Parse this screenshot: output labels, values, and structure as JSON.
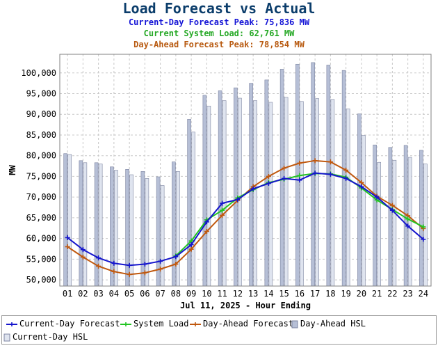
{
  "header": {
    "title": "Load Forecast vs Actual",
    "current_day_peak": "Current-Day Forecast Peak:  75,836 MW",
    "current_system_load": "Current System Load:  62,761 MW",
    "day_ahead_peak": "Day-Ahead Forecast Peak:  78,854 MW"
  },
  "colors": {
    "current_day_forecast": "#1515cc",
    "system_load": "#22c422",
    "day_ahead_forecast": "#c0580e",
    "bar_day_ahead_hsl": "#b6bfd6",
    "bar_current_day_hsl": "#dfe4ef",
    "bar_edge": "#7c84a0"
  },
  "chart_data": {
    "type": "bar+line",
    "xlabel": "Jul 11, 2025 - Hour Ending",
    "ylabel": "MW",
    "categories": [
      "01",
      "02",
      "03",
      "04",
      "05",
      "06",
      "07",
      "08",
      "09",
      "10",
      "11",
      "12",
      "13",
      "14",
      "15",
      "16",
      "17",
      "18",
      "19",
      "20",
      "21",
      "22",
      "23",
      "24"
    ],
    "ylim": [
      48500,
      104500
    ],
    "yticks": [
      50000,
      55000,
      60000,
      65000,
      70000,
      75000,
      80000,
      85000,
      90000,
      95000,
      100000
    ],
    "ytick_labels": [
      "50,000",
      "55,000",
      "60,000",
      "65,000",
      "70,000",
      "75,000",
      "80,000",
      "85,000",
      "90,000",
      "95,000",
      "100,000"
    ],
    "grid": true,
    "legend_position": "bottom",
    "series": [
      {
        "name": "Current-Day Forecast",
        "kind": "line",
        "values": [
          60200,
          57300,
          55300,
          54000,
          53500,
          53800,
          54500,
          55600,
          58500,
          64000,
          68500,
          69400,
          72000,
          73300,
          74500,
          74100,
          75800,
          75500,
          74500,
          72500,
          70000,
          66800,
          63000,
          59800
        ]
      },
      {
        "name": "System Load",
        "kind": "line",
        "values": [
          null,
          null,
          null,
          null,
          null,
          null,
          null,
          55800,
          59400,
          64500,
          66800,
          69800,
          71800,
          73500,
          74300,
          75200,
          75700,
          75600,
          74800,
          72200,
          69300,
          67000,
          64700,
          62800
        ]
      },
      {
        "name": "Day-Ahead Forecast",
        "kind": "line",
        "values": [
          58000,
          55500,
          53300,
          52000,
          51300,
          51700,
          52600,
          53800,
          57400,
          61700,
          65600,
          69200,
          72500,
          75000,
          77000,
          78200,
          78800,
          78500,
          76500,
          73500,
          70200,
          68000,
          65500,
          62400
        ]
      },
      {
        "name": "Day-Ahead HSL",
        "kind": "bar",
        "values": [
          80500,
          78800,
          78300,
          77300,
          76700,
          76200,
          74900,
          78500,
          88800,
          94600,
          95700,
          96400,
          97500,
          98300,
          100900,
          102100,
          102500,
          101900,
          100600,
          90100,
          82600,
          82000,
          82500,
          81300
        ]
      },
      {
        "name": "Current-Day HSL",
        "kind": "bar",
        "values": [
          80300,
          78300,
          78000,
          76500,
          75400,
          74500,
          72800,
          76200,
          85700,
          92000,
          93300,
          93900,
          93300,
          92900,
          94100,
          93100,
          93800,
          93600,
          91300,
          84900,
          78400,
          78900,
          79600,
          78000
        ]
      }
    ]
  }
}
